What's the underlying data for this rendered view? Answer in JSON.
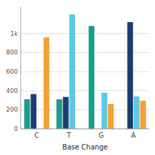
{
  "chart_data": {
    "type": "bar",
    "categories": [
      "C",
      "T",
      "G",
      "A"
    ],
    "series": [
      {
        "color": "#1a9e8c",
        "values": [
          310,
          310,
          1080,
          0
        ]
      },
      {
        "color": "#1e3d6e",
        "values": [
          365,
          335,
          0,
          1120
        ]
      },
      {
        "color": "#5bc8e8",
        "values": [
          0,
          1200,
          380,
          340
        ]
      },
      {
        "color": "#f5a030",
        "values": [
          960,
          0,
          260,
          295
        ]
      }
    ],
    "xlabel": "Base Change",
    "ylim": [
      0,
      1280
    ],
    "yticks": [
      0,
      200,
      400,
      600,
      800,
      {
        "value": 1000,
        "label": "1k"
      }
    ],
    "grid": true
  }
}
